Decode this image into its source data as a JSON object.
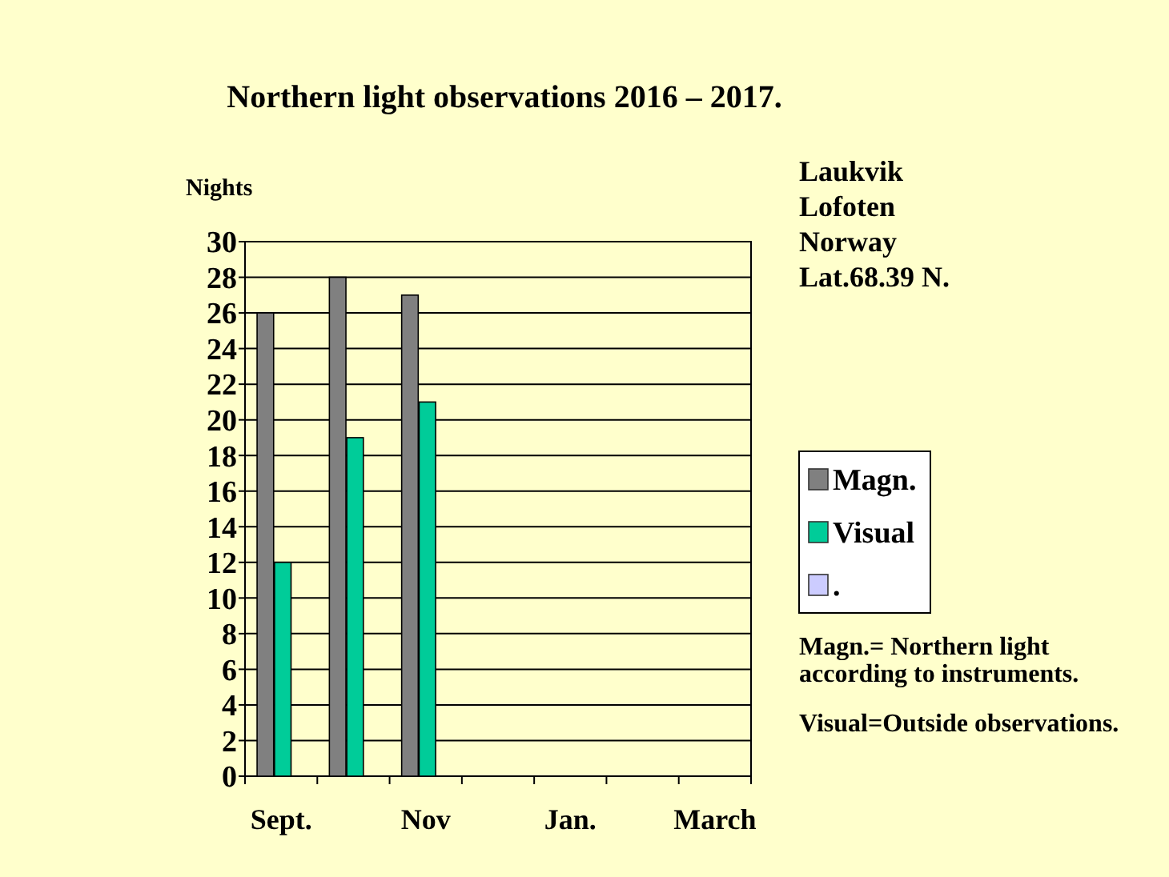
{
  "chart_data": {
    "type": "bar",
    "title": "Northern light observations 2016 – 2017.",
    "ylabel": "Nights",
    "categories": [
      "Sept.",
      null,
      "Nov",
      null,
      "Jan.",
      null,
      "March"
    ],
    "series": [
      {
        "name": "Magn.",
        "color": "#808080",
        "values": [
          26,
          28,
          27,
          0,
          0,
          0,
          0
        ]
      },
      {
        "name": "Visual",
        "color": "#00cc99",
        "values": [
          12,
          19,
          21,
          0,
          0,
          0,
          0
        ]
      },
      {
        "name": ".",
        "color": "#ccccff",
        "values": [
          0,
          0,
          0,
          0,
          0,
          0,
          0
        ]
      }
    ],
    "ylim": [
      0,
      30
    ],
    "yticks": [
      0,
      2,
      4,
      6,
      8,
      10,
      12,
      14,
      16,
      18,
      20,
      22,
      24,
      26,
      28,
      30
    ],
    "grid": "y",
    "legend": "right",
    "annotations": [
      "Laukvik\nLofoten\nNorway\nLat.68.39 N.",
      "Magn.= Northern light according to instruments.",
      "Visual=Outside observations."
    ]
  }
}
